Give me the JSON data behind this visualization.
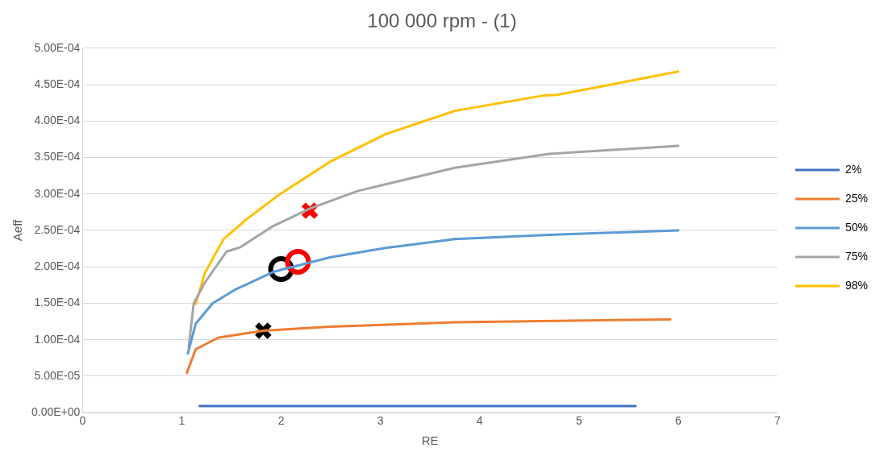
{
  "chart_data": {
    "type": "line",
    "title": "100 000 rpm - (1)",
    "xlabel": "RE",
    "ylabel": "Aeff",
    "xlim": [
      0,
      7
    ],
    "xticks": [
      0,
      1,
      2,
      3,
      4,
      5,
      6,
      7
    ],
    "ylim": [
      0,
      0.0005
    ],
    "yticks": [
      {
        "value": 0,
        "label": "0.00E+00"
      },
      {
        "value": 5e-05,
        "label": "5.00E-05"
      },
      {
        "value": 0.0001,
        "label": "1.00E-04"
      },
      {
        "value": 0.00015,
        "label": "1.50E-04"
      },
      {
        "value": 0.0002,
        "label": "2.00E-04"
      },
      {
        "value": 0.00025,
        "label": "2.50E-04"
      },
      {
        "value": 0.0003,
        "label": "3.00E-04"
      },
      {
        "value": 0.00035,
        "label": "3.50E-04"
      },
      {
        "value": 0.0004,
        "label": "4.00E-04"
      },
      {
        "value": 0.00045,
        "label": "4.50E-04"
      },
      {
        "value": 0.0005,
        "label": "5.00E-04"
      }
    ],
    "grid": "y",
    "legend": "right",
    "marker": "none",
    "line_style": "solid",
    "series": [
      {
        "name": "2%",
        "color": "#4472c4",
        "x": [
          1.18,
          5.57
        ],
        "values": [
          9e-06,
          9e-06
        ]
      },
      {
        "name": "25%",
        "color": "#ed7d31",
        "x": [
          1.05,
          1.14,
          1.37,
          1.82,
          2.49,
          3.75,
          5.92
        ],
        "values": [
          5.45e-05,
          8.7e-05,
          0.000103,
          0.0001125,
          0.000118,
          0.000124,
          0.000128
        ]
      },
      {
        "name": "50%",
        "color": "#5b9bd5",
        "x": [
          1.06,
          1.14,
          1.31,
          1.54,
          1.92,
          2.49,
          3.05,
          3.75,
          4.7,
          6.0
        ],
        "values": [
          8.1e-05,
          0.000122,
          0.00015,
          0.000169,
          0.000193,
          0.000213,
          0.000226,
          0.000238,
          0.000244,
          0.00025
        ]
      },
      {
        "name": "75%",
        "color": "#a5a5a5",
        "x": [
          1.07,
          1.12,
          1.23,
          1.45,
          1.59,
          1.92,
          2.29,
          2.77,
          3.75,
          4.7,
          6.0
        ],
        "values": [
          9.1e-05,
          0.00015,
          0.000178,
          0.000221,
          0.000227,
          0.000256,
          0.00028,
          0.000304,
          0.000336,
          0.000355,
          0.000366
        ]
      },
      {
        "name": "98%",
        "color": "#ffc000",
        "x": [
          1.14,
          1.23,
          1.42,
          1.65,
          1.98,
          2.49,
          3.05,
          3.75,
          4.64,
          4.78,
          5.51,
          6.0
        ],
        "values": [
          0.000149,
          0.000191,
          0.000238,
          0.000265,
          0.000299,
          0.000344,
          0.000382,
          0.000414,
          0.000435,
          0.000436,
          0.000455,
          0.000468
        ]
      },
      {
        "type": "scatter",
        "marker": "cross",
        "color": "#ff0000",
        "x": [
          2.29
        ],
        "values": [
          0.000277
        ]
      },
      {
        "type": "scatter",
        "marker": "circle",
        "color": "#ff0000",
        "x": [
          2.17
        ],
        "values": [
          0.000207
        ]
      },
      {
        "type": "scatter",
        "marker": "circle",
        "color": "#000000",
        "x": [
          2.0
        ],
        "values": [
          0.000197
        ]
      },
      {
        "type": "scatter",
        "marker": "cross",
        "color": "#000000",
        "x": [
          1.82
        ],
        "values": [
          0.0001125
        ]
      }
    ]
  }
}
